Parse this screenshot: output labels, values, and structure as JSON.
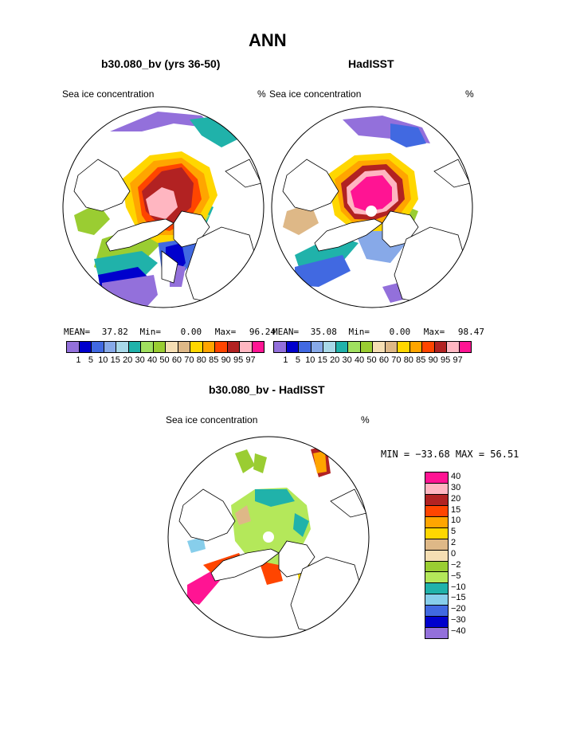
{
  "title": "ANN",
  "panels": [
    {
      "subtitle": "b30.080_bv (yrs 36-50)",
      "left_label": "Sea ice concentration",
      "right_label": "%",
      "stats": {
        "mean_label": "MEAN=",
        "mean": "37.82",
        "min_label": "Min=",
        "min": "0.00",
        "max_label": "Max=",
        "max": "96.24"
      }
    },
    {
      "subtitle": "HadISST",
      "left_label": "Sea ice concentration",
      "right_label": "%",
      "stats": {
        "mean_label": "MEAN=",
        "mean": "35.08",
        "min_label": "Min=",
        "min": "0.00",
        "max_label": "Max=",
        "max": "98.47"
      }
    }
  ],
  "top_colorbar": {
    "labels": [
      "1",
      "5",
      "10",
      "15",
      "20",
      "30",
      "40",
      "50",
      "60",
      "70",
      "80",
      "85",
      "90",
      "95",
      "97"
    ],
    "colors": [
      "#9370db",
      "#0000cd",
      "#4169e1",
      "#87a9e8",
      "#a8d8e8",
      "#20b2aa",
      "#a0e060",
      "#9acd32",
      "#f5deb3",
      "#deb887",
      "#ffd700",
      "#ffa500",
      "#ff4500",
      "#b22222",
      "#ffb6c1",
      "#ff1493"
    ]
  },
  "diff_panel": {
    "subtitle": "b30.080_bv - HadISST",
    "left_label": "Sea ice concentration",
    "right_label": "%",
    "minmax": "MIN = −33.68  MAX =  56.51"
  },
  "diff_colorbar": {
    "labels": [
      "40",
      "30",
      "20",
      "15",
      "10",
      "5",
      "2",
      "0",
      "−2",
      "−5",
      "−10",
      "−15",
      "−20",
      "−30",
      "−40"
    ],
    "colors": [
      "#ff1493",
      "#ffb6c1",
      "#b22222",
      "#ff4500",
      "#ffa500",
      "#ffd700",
      "#deb887",
      "#f5deb3",
      "#9acd32",
      "#b4e85a",
      "#20b2aa",
      "#87ceeb",
      "#4169e1",
      "#0000cd",
      "#9370db"
    ]
  }
}
